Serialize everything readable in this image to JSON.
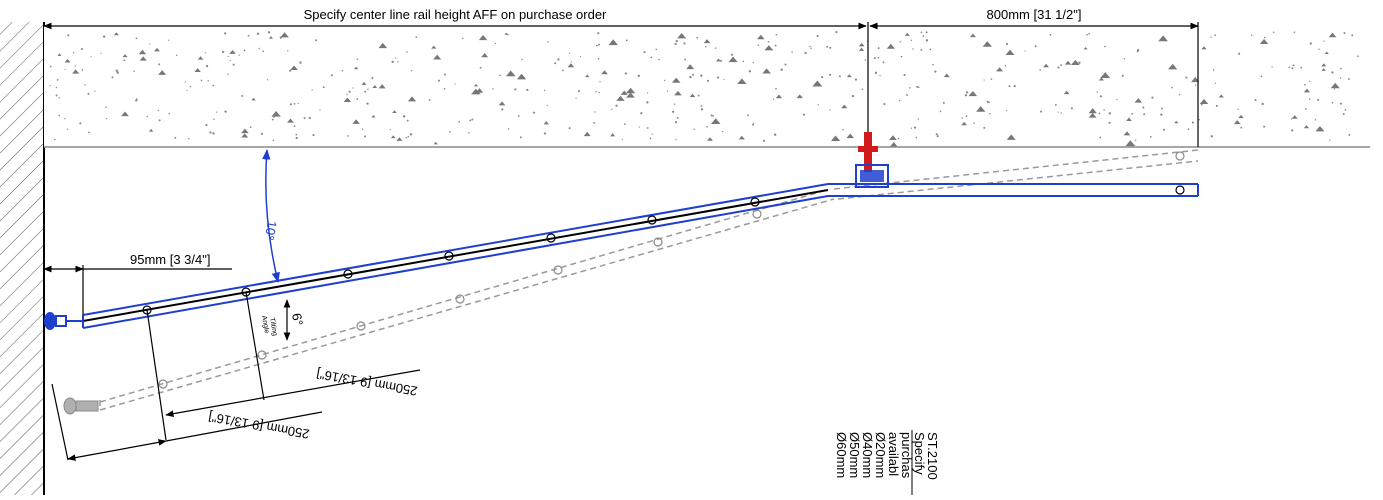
{
  "dimensions": {
    "rail_height_note": "Specify center line rail height AFF on purchase order",
    "top_right_span": "800mm [31 1/2\"]",
    "wall_offset": "95mm [3 3/4\"]",
    "tilt_angle": "10°",
    "tilting_angle_value": "6°",
    "tilting_angle_label_line1": "Tilting",
    "tilting_angle_label_line2": "Angle",
    "lower_span_upper": "250mm [9 13/16\"]",
    "lower_span_lower": "250mm [9 13/16\"]"
  },
  "notes": {
    "lines": [
      "ST.2100",
      "Specify",
      "purchas",
      "availabl",
      "Ø20mm",
      "Ø40mm",
      "Ø50mm",
      "Ø60mm"
    ]
  },
  "colors": {
    "rail_blue": "#1f3fcf",
    "ghost_gray": "#9a9a9a",
    "bracket_red": "#d11a1a",
    "dimension_black": "#000000"
  }
}
